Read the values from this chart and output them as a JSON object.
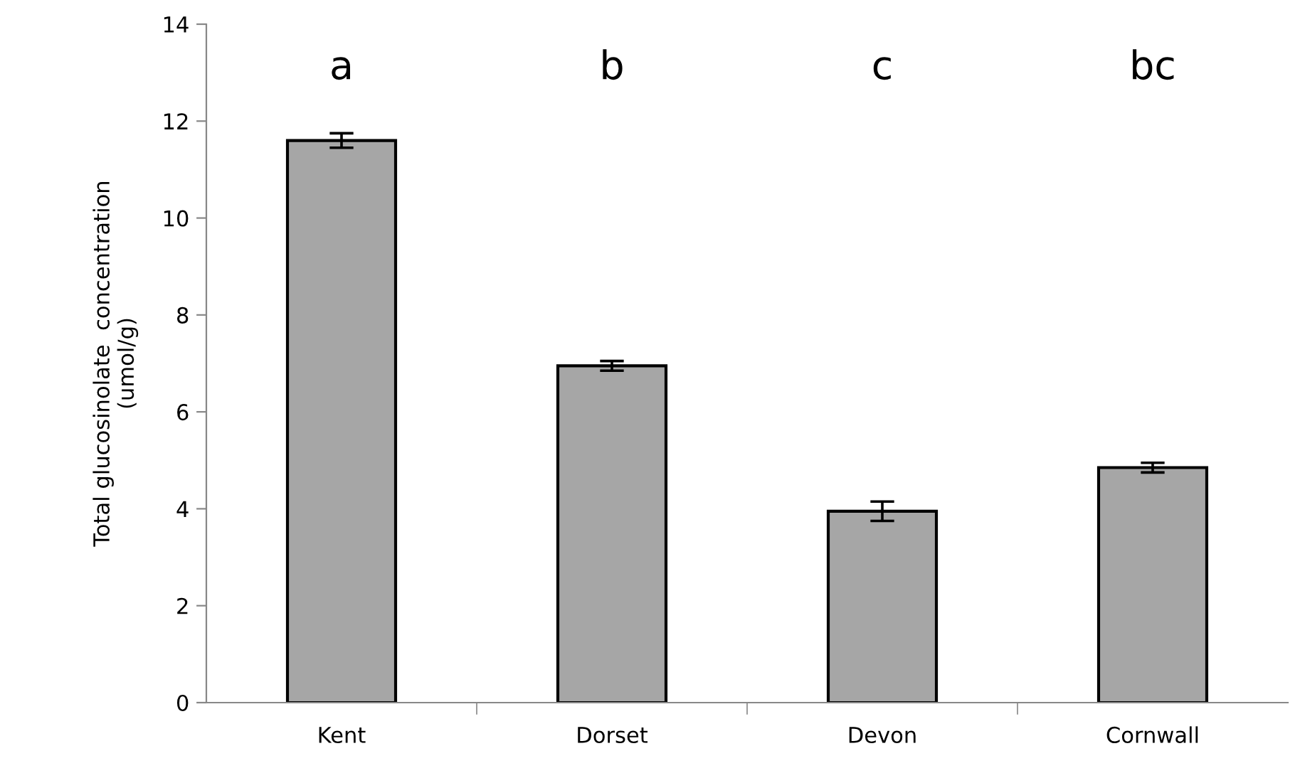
{
  "chart_data": {
    "type": "bar",
    "ylabel": "Total glucosinolate  concentration\n(umol/g)",
    "categories": [
      "Kent",
      "Dorset",
      "Devon",
      "Cornwall"
    ],
    "values": [
      11.6,
      6.95,
      3.95,
      4.85
    ],
    "errors": [
      0.15,
      0.1,
      0.2,
      0.1
    ],
    "color": "#a6a6a6",
    "ylim": [
      0,
      14
    ],
    "yticks": [
      0,
      2,
      4,
      6,
      8,
      10,
      12,
      14
    ],
    "grid": false,
    "annotations": [
      "a",
      "b",
      "c",
      "bc"
    ]
  }
}
